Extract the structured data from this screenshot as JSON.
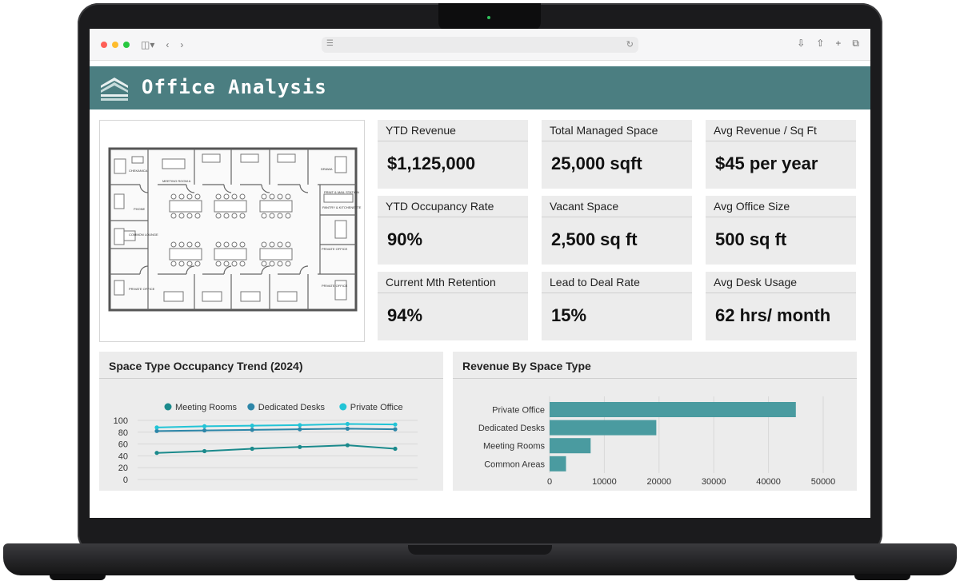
{
  "dashboard": {
    "title": "Office Analysis"
  },
  "floorplan_labels": {
    "chekanica": "CHEKANICA",
    "meeting_rooms": "MEETING ROOM A",
    "phone": "PHONE",
    "common_lounge": "COMMON LOUNGE",
    "private_office_bl": "PRIVATE OFFICE",
    "drawa": "DRAWA",
    "print_station": "PRINT & MAIL STATION",
    "pantry": "PANTRY & KITCHENETTE",
    "private_office_r1": "PRIVATE OFFICE",
    "private_office_r2": "PRIVATE OFFICE"
  },
  "kpis": [
    {
      "label": "YTD Revenue",
      "value": "$1,125,000"
    },
    {
      "label": "Total Managed Space",
      "value": "25,000 sqft"
    },
    {
      "label": "Avg Revenue / Sq Ft",
      "value": "$45 per year"
    },
    {
      "label": "YTD Occupancy Rate",
      "value": "90%"
    },
    {
      "label": "Vacant Space",
      "value": "2,500 sq ft"
    },
    {
      "label": "Avg Office Size",
      "value": "500 sq ft"
    },
    {
      "label": "Current Mth Retention",
      "value": "94%"
    },
    {
      "label": "Lead to Deal Rate",
      "value": "15%"
    },
    {
      "label": "Avg Desk Usage",
      "value": "62 hrs/ month"
    }
  ],
  "chart_data": [
    {
      "type": "line",
      "title": "Space Type Occupancy Trend (2024)",
      "legend_position": "top",
      "ylim": [
        0,
        100
      ],
      "yticks": [
        "100",
        "80",
        "60",
        "40",
        "20",
        "0"
      ],
      "x": [
        1,
        2,
        3,
        4,
        5,
        6
      ],
      "series": [
        {
          "name": "Meeting Rooms",
          "color": "#1b8a8c",
          "values": [
            45,
            48,
            52,
            55,
            58,
            52
          ]
        },
        {
          "name": "Dedicated Desks",
          "color": "#2d86a8",
          "values": [
            82,
            83,
            84,
            85,
            86,
            85
          ]
        },
        {
          "name": "Private Office",
          "color": "#22c4d6",
          "values": [
            88,
            90,
            91,
            92,
            94,
            93
          ]
        }
      ]
    },
    {
      "type": "bar",
      "orientation": "horizontal",
      "title": "Revenue By Space Type",
      "categories": [
        "Private Office",
        "Dedicated Desks",
        "Meeting Rooms",
        "Common Areas"
      ],
      "values": [
        45000,
        19500,
        7500,
        3000
      ],
      "xlim": [
        0,
        50000
      ],
      "xticks": [
        "0",
        "10000",
        "20000",
        "30000",
        "40000",
        "50000"
      ],
      "bar_color": "#4a9ba0"
    }
  ]
}
